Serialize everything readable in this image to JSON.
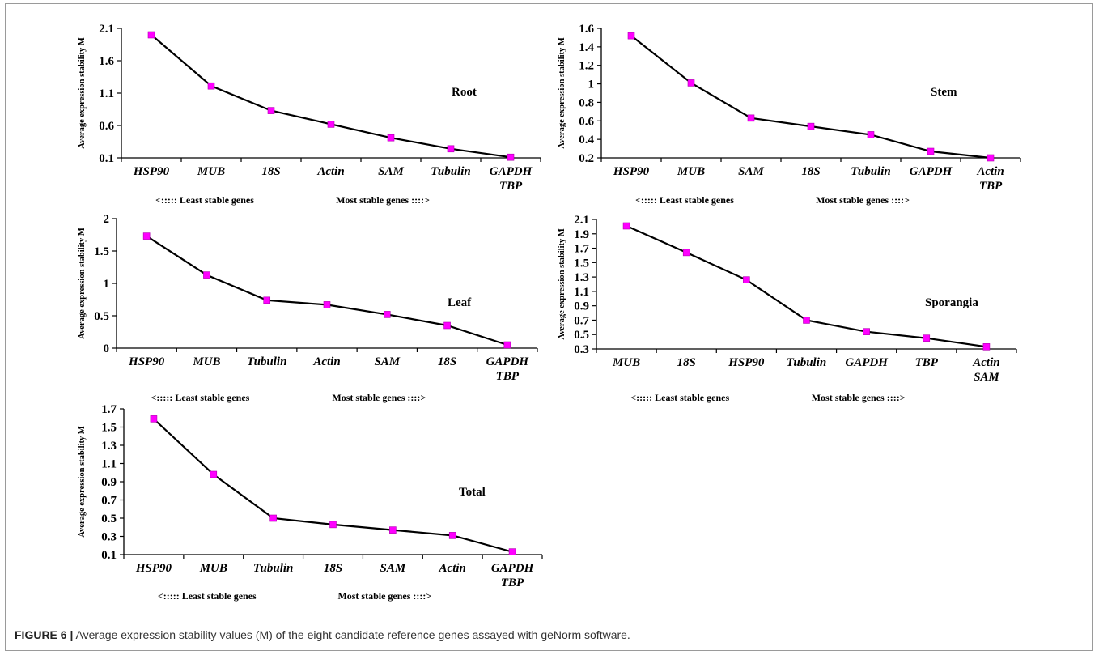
{
  "caption": {
    "label": "FIGURE 6 |",
    "text": " Average expression stability values (M) of the eight candidate reference genes assayed with geNorm software."
  },
  "colors": {
    "line": "#000000",
    "marker": "#ff00ff",
    "marker_edge": "#b000b0"
  },
  "chart_data": [
    {
      "type": "line",
      "title": "Root",
      "ylabel": "Average expression stability M",
      "ylim": [
        0.1,
        2.1
      ],
      "yticks": [
        "0.1",
        "0.6",
        "1.1",
        "1.6",
        "2.1"
      ],
      "categories": [
        "HSP90",
        "MUB",
        "18S",
        "Actin",
        "SAM",
        "Tubulin",
        "GAPDH\nTBP"
      ],
      "values": [
        2.0,
        1.21,
        0.83,
        0.62,
        0.41,
        0.24,
        0.11
      ],
      "note_left": "<::::: Least stable genes",
      "note_right": "Most stable genes ::::>"
    },
    {
      "type": "line",
      "title": "Stem",
      "ylabel": "Average expression stability M",
      "ylim": [
        0.2,
        1.6
      ],
      "yticks": [
        "0.2",
        "0.4",
        "0.6",
        "0.8",
        "1",
        "1.2",
        "1.4",
        "1.6"
      ],
      "categories": [
        "HSP90",
        "MUB",
        "SAM",
        "18S",
        "Tubulin",
        "GAPDH",
        "Actin\nTBP"
      ],
      "values": [
        1.52,
        1.01,
        0.63,
        0.54,
        0.45,
        0.27,
        0.2
      ],
      "note_left": "<::::: Least stable genes",
      "note_right": "Most stable genes ::::>"
    },
    {
      "type": "line",
      "title": "Leaf",
      "ylabel": "Average expression stability M",
      "ylim": [
        0,
        2
      ],
      "yticks": [
        "0",
        "0.5",
        "1",
        "1.5",
        "2"
      ],
      "categories": [
        "HSP90",
        "MUB",
        "Tubulin",
        "Actin",
        "SAM",
        "18S",
        "GAPDH\nTBP"
      ],
      "values": [
        1.73,
        1.13,
        0.74,
        0.67,
        0.52,
        0.35,
        0.05
      ],
      "note_left": "<::::: Least stable genes",
      "note_right": "Most stable genes ::::>"
    },
    {
      "type": "line",
      "title": "Sporangia",
      "ylabel": "Average expression stability M",
      "ylim": [
        0.3,
        2.1
      ],
      "yticks": [
        "0.3",
        "0.5",
        "0.7",
        "0.9",
        "1.1",
        "1.3",
        "1.5",
        "1.7",
        "1.9",
        "2.1"
      ],
      "categories": [
        "MUB",
        "18S",
        "HSP90",
        "Tubulin",
        "GAPDH",
        "TBP",
        "Actin\nSAM"
      ],
      "values": [
        2.01,
        1.64,
        1.26,
        0.7,
        0.54,
        0.45,
        0.33
      ],
      "note_left": "<::::: Least stable genes",
      "note_right": "Most stable genes ::::>"
    },
    {
      "type": "line",
      "title": "Total",
      "ylabel": "Average expression stability M",
      "ylim": [
        0.1,
        1.7
      ],
      "yticks": [
        "0.1",
        "0.3",
        "0.5",
        "0.7",
        "0.9",
        "1.1",
        "1.3",
        "1.5",
        "1.7"
      ],
      "categories": [
        "HSP90",
        "MUB",
        "Tubulin",
        "18S",
        "SAM",
        "Actin",
        "GAPDH\nTBP"
      ],
      "values": [
        1.59,
        0.98,
        0.5,
        0.43,
        0.37,
        0.31,
        0.13
      ],
      "note_left": "<::::: Least stable genes",
      "note_right": "Most stable genes ::::>"
    }
  ]
}
